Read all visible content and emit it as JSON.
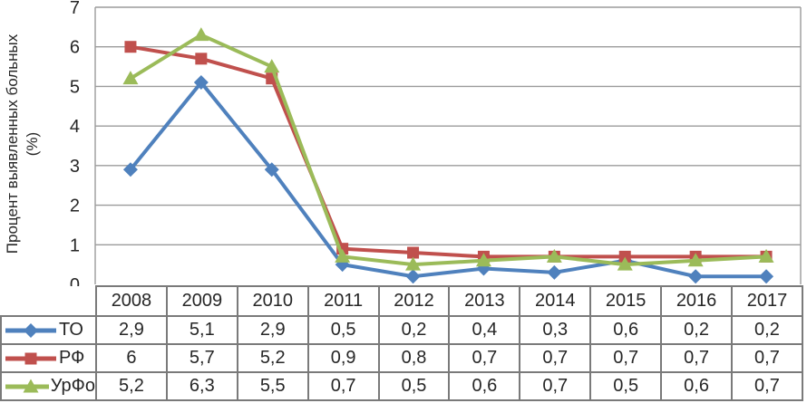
{
  "chart_data": {
    "type": "line",
    "title": "",
    "ylabel_lines": [
      "Процент выявленных больных",
      "(%)"
    ],
    "xlabel": "",
    "categories": [
      "2008",
      "2009",
      "2010",
      "2011",
      "2012",
      "2013",
      "2014",
      "2015",
      "2016",
      "2017"
    ],
    "series": [
      {
        "name": "ТО",
        "marker": "diamond",
        "color": "#4F81BD",
        "values": [
          2.9,
          5.1,
          2.9,
          0.5,
          0.2,
          0.4,
          0.3,
          0.6,
          0.2,
          0.2
        ],
        "display": [
          "2,9",
          "5,1",
          "2,9",
          "0,5",
          "0,2",
          "0,4",
          "0,3",
          "0,6",
          "0,2",
          "0,2"
        ]
      },
      {
        "name": "РФ",
        "marker": "square",
        "color": "#C0504D",
        "values": [
          6,
          5.7,
          5.2,
          0.9,
          0.8,
          0.7,
          0.7,
          0.7,
          0.7,
          0.7
        ],
        "display": [
          "6",
          "5,7",
          "5,2",
          "0,9",
          "0,8",
          "0,7",
          "0,7",
          "0,7",
          "0,7",
          "0,7"
        ]
      },
      {
        "name": "УрФо",
        "marker": "triangle",
        "color": "#9BBB59",
        "values": [
          5.2,
          6.3,
          5.5,
          0.7,
          0.5,
          0.6,
          0.7,
          0.5,
          0.6,
          0.7
        ],
        "display": [
          "5,2",
          "6,3",
          "5,5",
          "0,7",
          "0,5",
          "0,6",
          "0,7",
          "0,5",
          "0,6",
          "0,7"
        ]
      }
    ],
    "ylim": [
      0,
      7
    ],
    "yticks": [
      0,
      1,
      2,
      3,
      4,
      5,
      6,
      7
    ],
    "grid": true,
    "gridline_color": "#9b9b9b",
    "legend_position": "table-left"
  }
}
